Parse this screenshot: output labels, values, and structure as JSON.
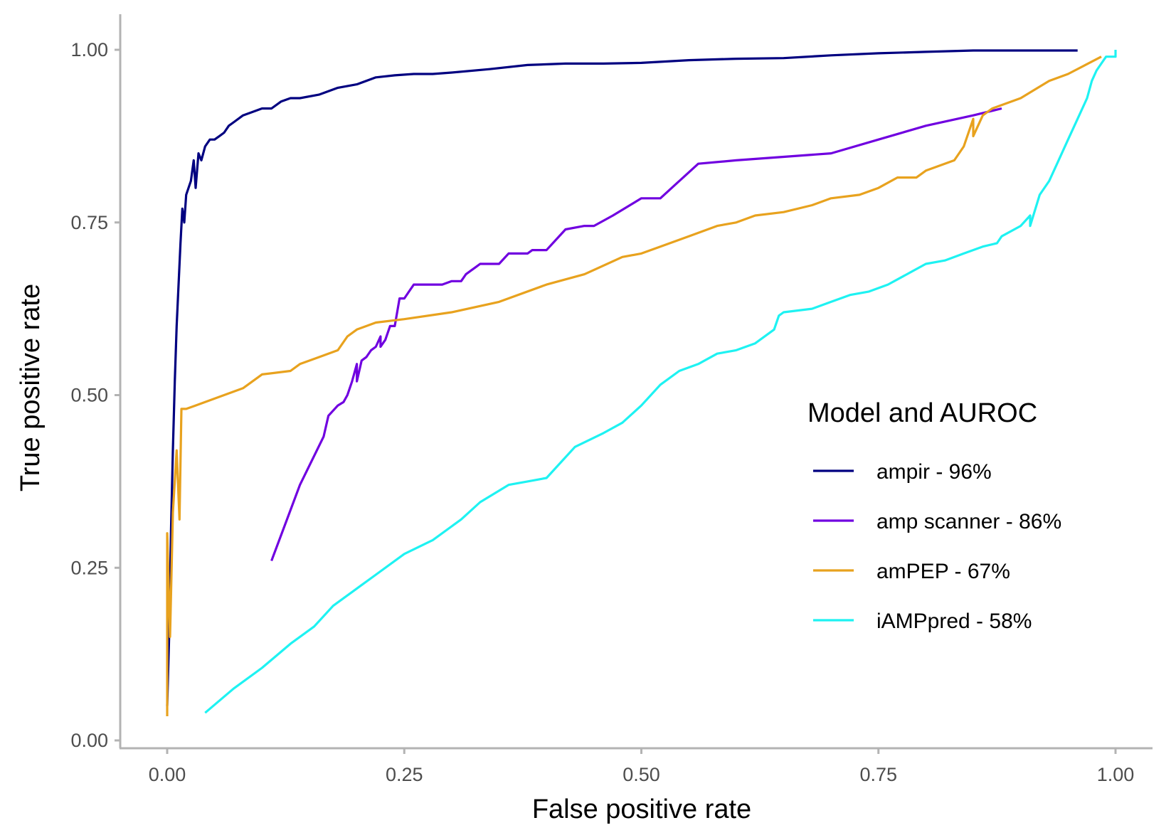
{
  "chart_data": {
    "type": "line",
    "title": "",
    "xlabel": "False positive rate",
    "ylabel": "True positive rate",
    "xlim": [
      0,
      1
    ],
    "ylim": [
      0,
      1
    ],
    "x_ticks": [
      0,
      0.25,
      0.5,
      0.75,
      1
    ],
    "x_tick_labels": [
      "0.00",
      "0.25",
      "0.50",
      "0.75",
      "1.00"
    ],
    "y_ticks": [
      0,
      0.25,
      0.5,
      0.75,
      1
    ],
    "y_tick_labels": [
      "0.00",
      "0.25",
      "0.50",
      "0.75",
      "1.00"
    ],
    "grid": false,
    "legend": {
      "title": "Model and AUROC",
      "placement": "right-inside"
    },
    "series": [
      {
        "name": "ampir - 96%",
        "color": "#000080",
        "points": [
          [
            0.0,
            0.05
          ],
          [
            0.002,
            0.15
          ],
          [
            0.004,
            0.3
          ],
          [
            0.006,
            0.42
          ],
          [
            0.008,
            0.52
          ],
          [
            0.01,
            0.6
          ],
          [
            0.012,
            0.66
          ],
          [
            0.014,
            0.72
          ],
          [
            0.016,
            0.77
          ],
          [
            0.018,
            0.75
          ],
          [
            0.02,
            0.79
          ],
          [
            0.025,
            0.81
          ],
          [
            0.028,
            0.84
          ],
          [
            0.03,
            0.8
          ],
          [
            0.033,
            0.85
          ],
          [
            0.036,
            0.84
          ],
          [
            0.04,
            0.86
          ],
          [
            0.045,
            0.87
          ],
          [
            0.05,
            0.87
          ],
          [
            0.055,
            0.875
          ],
          [
            0.06,
            0.88
          ],
          [
            0.065,
            0.89
          ],
          [
            0.07,
            0.895
          ],
          [
            0.08,
            0.905
          ],
          [
            0.09,
            0.91
          ],
          [
            0.1,
            0.915
          ],
          [
            0.11,
            0.915
          ],
          [
            0.12,
            0.925
          ],
          [
            0.13,
            0.93
          ],
          [
            0.14,
            0.93
          ],
          [
            0.16,
            0.935
          ],
          [
            0.18,
            0.945
          ],
          [
            0.2,
            0.95
          ],
          [
            0.22,
            0.96
          ],
          [
            0.24,
            0.963
          ],
          [
            0.26,
            0.965
          ],
          [
            0.28,
            0.965
          ],
          [
            0.3,
            0.967
          ],
          [
            0.34,
            0.972
          ],
          [
            0.38,
            0.978
          ],
          [
            0.42,
            0.98
          ],
          [
            0.46,
            0.98
          ],
          [
            0.5,
            0.981
          ],
          [
            0.55,
            0.985
          ],
          [
            0.6,
            0.987
          ],
          [
            0.65,
            0.988
          ],
          [
            0.7,
            0.992
          ],
          [
            0.75,
            0.995
          ],
          [
            0.8,
            0.997
          ],
          [
            0.85,
            0.999
          ],
          [
            0.9,
            0.999
          ],
          [
            0.96,
            0.999
          ]
        ]
      },
      {
        "name": "amp scanner - 86%",
        "color": "#7000e0",
        "points": [
          [
            0.11,
            0.26
          ],
          [
            0.14,
            0.37
          ],
          [
            0.165,
            0.44
          ],
          [
            0.17,
            0.47
          ],
          [
            0.18,
            0.485
          ],
          [
            0.186,
            0.49
          ],
          [
            0.19,
            0.5
          ],
          [
            0.195,
            0.52
          ],
          [
            0.2,
            0.545
          ],
          [
            0.2,
            0.52
          ],
          [
            0.205,
            0.55
          ],
          [
            0.21,
            0.555
          ],
          [
            0.215,
            0.565
          ],
          [
            0.22,
            0.57
          ],
          [
            0.225,
            0.585
          ],
          [
            0.225,
            0.57
          ],
          [
            0.23,
            0.58
          ],
          [
            0.235,
            0.6
          ],
          [
            0.24,
            0.6
          ],
          [
            0.245,
            0.64
          ],
          [
            0.25,
            0.64
          ],
          [
            0.255,
            0.65
          ],
          [
            0.26,
            0.66
          ],
          [
            0.27,
            0.66
          ],
          [
            0.28,
            0.66
          ],
          [
            0.29,
            0.66
          ],
          [
            0.3,
            0.665
          ],
          [
            0.31,
            0.665
          ],
          [
            0.315,
            0.675
          ],
          [
            0.32,
            0.68
          ],
          [
            0.325,
            0.685
          ],
          [
            0.33,
            0.69
          ],
          [
            0.34,
            0.69
          ],
          [
            0.35,
            0.69
          ],
          [
            0.36,
            0.705
          ],
          [
            0.38,
            0.705
          ],
          [
            0.385,
            0.71
          ],
          [
            0.4,
            0.71
          ],
          [
            0.42,
            0.74
          ],
          [
            0.44,
            0.745
          ],
          [
            0.45,
            0.745
          ],
          [
            0.47,
            0.76
          ],
          [
            0.5,
            0.785
          ],
          [
            0.52,
            0.785
          ],
          [
            0.54,
            0.81
          ],
          [
            0.56,
            0.835
          ],
          [
            0.6,
            0.84
          ],
          [
            0.65,
            0.845
          ],
          [
            0.7,
            0.85
          ],
          [
            0.75,
            0.87
          ],
          [
            0.8,
            0.89
          ],
          [
            0.85,
            0.905
          ],
          [
            0.88,
            0.915
          ]
        ]
      },
      {
        "name": "amPEP - 67%",
        "color": "#e8a21e",
        "points": [
          [
            0.0,
            0.035
          ],
          [
            0.0,
            0.3
          ],
          [
            0.003,
            0.15
          ],
          [
            0.006,
            0.33
          ],
          [
            0.01,
            0.42
          ],
          [
            0.013,
            0.32
          ],
          [
            0.015,
            0.48
          ],
          [
            0.02,
            0.48
          ],
          [
            0.03,
            0.485
          ],
          [
            0.05,
            0.495
          ],
          [
            0.08,
            0.51
          ],
          [
            0.1,
            0.53
          ],
          [
            0.13,
            0.535
          ],
          [
            0.14,
            0.545
          ],
          [
            0.16,
            0.555
          ],
          [
            0.18,
            0.565
          ],
          [
            0.19,
            0.585
          ],
          [
            0.2,
            0.595
          ],
          [
            0.22,
            0.605
          ],
          [
            0.25,
            0.61
          ],
          [
            0.3,
            0.62
          ],
          [
            0.35,
            0.635
          ],
          [
            0.4,
            0.66
          ],
          [
            0.44,
            0.675
          ],
          [
            0.48,
            0.7
          ],
          [
            0.5,
            0.705
          ],
          [
            0.52,
            0.715
          ],
          [
            0.55,
            0.73
          ],
          [
            0.58,
            0.745
          ],
          [
            0.6,
            0.75
          ],
          [
            0.62,
            0.76
          ],
          [
            0.65,
            0.765
          ],
          [
            0.68,
            0.775
          ],
          [
            0.7,
            0.785
          ],
          [
            0.73,
            0.79
          ],
          [
            0.75,
            0.8
          ],
          [
            0.77,
            0.815
          ],
          [
            0.79,
            0.815
          ],
          [
            0.8,
            0.825
          ],
          [
            0.83,
            0.84
          ],
          [
            0.84,
            0.86
          ],
          [
            0.85,
            0.9
          ],
          [
            0.85,
            0.875
          ],
          [
            0.86,
            0.905
          ],
          [
            0.87,
            0.915
          ],
          [
            0.9,
            0.93
          ],
          [
            0.93,
            0.955
          ],
          [
            0.95,
            0.965
          ],
          [
            0.985,
            0.99
          ]
        ]
      },
      {
        "name": "iAMPpred - 58%",
        "color": "#1ef2f2",
        "points": [
          [
            0.04,
            0.04
          ],
          [
            0.07,
            0.075
          ],
          [
            0.1,
            0.105
          ],
          [
            0.13,
            0.14
          ],
          [
            0.155,
            0.165
          ],
          [
            0.175,
            0.195
          ],
          [
            0.2,
            0.22
          ],
          [
            0.22,
            0.24
          ],
          [
            0.25,
            0.27
          ],
          [
            0.28,
            0.29
          ],
          [
            0.31,
            0.32
          ],
          [
            0.33,
            0.345
          ],
          [
            0.36,
            0.37
          ],
          [
            0.38,
            0.375
          ],
          [
            0.4,
            0.38
          ],
          [
            0.43,
            0.425
          ],
          [
            0.46,
            0.445
          ],
          [
            0.48,
            0.46
          ],
          [
            0.5,
            0.485
          ],
          [
            0.52,
            0.515
          ],
          [
            0.54,
            0.535
          ],
          [
            0.56,
            0.545
          ],
          [
            0.58,
            0.56
          ],
          [
            0.6,
            0.565
          ],
          [
            0.62,
            0.575
          ],
          [
            0.64,
            0.595
          ],
          [
            0.645,
            0.615
          ],
          [
            0.65,
            0.62
          ],
          [
            0.68,
            0.625
          ],
          [
            0.7,
            0.635
          ],
          [
            0.72,
            0.645
          ],
          [
            0.74,
            0.65
          ],
          [
            0.76,
            0.66
          ],
          [
            0.78,
            0.675
          ],
          [
            0.8,
            0.69
          ],
          [
            0.82,
            0.695
          ],
          [
            0.84,
            0.705
          ],
          [
            0.86,
            0.715
          ],
          [
            0.875,
            0.72
          ],
          [
            0.88,
            0.73
          ],
          [
            0.9,
            0.745
          ],
          [
            0.91,
            0.76
          ],
          [
            0.91,
            0.745
          ],
          [
            0.92,
            0.79
          ],
          [
            0.93,
            0.81
          ],
          [
            0.94,
            0.84
          ],
          [
            0.95,
            0.87
          ],
          [
            0.96,
            0.9
          ],
          [
            0.97,
            0.93
          ],
          [
            0.975,
            0.955
          ],
          [
            0.98,
            0.97
          ],
          [
            0.985,
            0.98
          ],
          [
            0.99,
            0.99
          ],
          [
            1.0,
            0.99
          ],
          [
            1.0,
            1.0
          ]
        ]
      }
    ]
  }
}
